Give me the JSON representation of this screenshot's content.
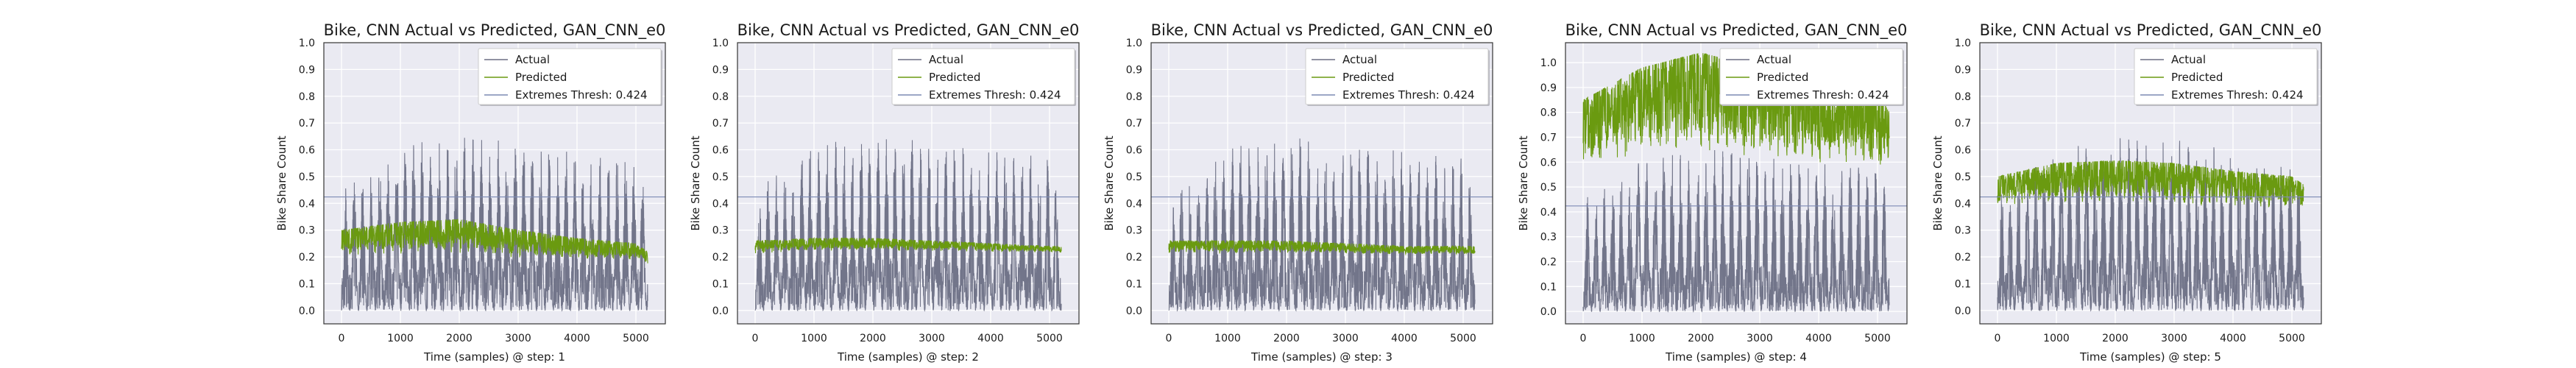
{
  "colors": {
    "plot_bg": "#eaeaf2",
    "grid": "#ffffff",
    "actual": "#6b6f84",
    "predicted": "#6a9a10",
    "thresh": "#7c8ab4",
    "legend_bg": "#ffffff",
    "text": "#1a1a1a"
  },
  "legend": {
    "actual_label": "Actual",
    "predicted_label": "Predicted",
    "thresh_label": "Extremes Thresh: 0.424"
  },
  "chart_data": [
    {
      "type": "line",
      "title": "Bike, CNN Actual vs Predicted, GAN_CNN_e0",
      "xlabel": "Time (samples) @ step: 1",
      "ylabel": "Bike Share Count",
      "xlim": [
        -300,
        5500
      ],
      "ylim": [
        -0.05,
        1.0
      ],
      "xticks": [
        "0",
        "1000",
        "2000",
        "3000",
        "4000",
        "5000"
      ],
      "yticks": [
        "0.0",
        "0.1",
        "0.2",
        "0.3",
        "0.4",
        "0.5",
        "0.6",
        "0.7",
        "0.8",
        "0.9",
        "1.0"
      ],
      "threshold": 0.424,
      "legend_placement": "top-right",
      "grid": true,
      "series": [
        {
          "name": "Actual",
          "envelope_x": [
            0,
            1000,
            2000,
            3000,
            4000,
            5000,
            5200
          ],
          "envelope_low": [
            0.0,
            0.0,
            0.0,
            0.0,
            0.0,
            0.0,
            0.0
          ],
          "envelope_high": [
            0.45,
            0.62,
            0.66,
            0.64,
            0.6,
            0.58,
            0.45
          ]
        },
        {
          "name": "Predicted",
          "envelope_x": [
            0,
            1000,
            2000,
            3000,
            4000,
            5000,
            5200
          ],
          "envelope_low": [
            0.18,
            0.18,
            0.18,
            0.17,
            0.17,
            0.17,
            0.16
          ],
          "envelope_high": [
            0.3,
            0.33,
            0.34,
            0.3,
            0.27,
            0.25,
            0.22
          ]
        }
      ]
    },
    {
      "type": "line",
      "title": "Bike, CNN Actual vs Predicted, GAN_CNN_e0",
      "xlabel": "Time (samples) @ step: 2",
      "ylabel": "Bike Share Count",
      "xlim": [
        -300,
        5500
      ],
      "ylim": [
        -0.05,
        1.0
      ],
      "xticks": [
        "0",
        "1000",
        "2000",
        "3000",
        "4000",
        "5000"
      ],
      "yticks": [
        "0.0",
        "0.1",
        "0.2",
        "0.3",
        "0.4",
        "0.5",
        "0.6",
        "0.7",
        "0.8",
        "0.9",
        "1.0"
      ],
      "threshold": 0.424,
      "legend_placement": "top-right",
      "grid": true,
      "series": [
        {
          "name": "Actual",
          "envelope_x": [
            0,
            1000,
            2000,
            3000,
            4000,
            5000,
            5200
          ],
          "envelope_low": [
            0.0,
            0.0,
            0.0,
            0.0,
            0.0,
            0.0,
            0.0
          ],
          "envelope_high": [
            0.45,
            0.62,
            0.66,
            0.64,
            0.6,
            0.58,
            0.45
          ]
        },
        {
          "name": "Predicted",
          "envelope_x": [
            0,
            1000,
            2000,
            3000,
            4000,
            5000,
            5200
          ],
          "envelope_low": [
            0.2,
            0.21,
            0.21,
            0.21,
            0.21,
            0.21,
            0.21
          ],
          "envelope_high": [
            0.26,
            0.27,
            0.27,
            0.26,
            0.25,
            0.24,
            0.24
          ]
        }
      ]
    },
    {
      "type": "line",
      "title": "Bike, CNN Actual vs Predicted, GAN_CNN_e0",
      "xlabel": "Time (samples) @ step: 3",
      "ylabel": "Bike Share Count",
      "xlim": [
        -300,
        5500
      ],
      "ylim": [
        -0.05,
        1.0
      ],
      "xticks": [
        "0",
        "1000",
        "2000",
        "3000",
        "4000",
        "5000"
      ],
      "yticks": [
        "0.0",
        "0.1",
        "0.2",
        "0.3",
        "0.4",
        "0.5",
        "0.6",
        "0.7",
        "0.8",
        "0.9",
        "1.0"
      ],
      "threshold": 0.424,
      "legend_placement": "top-right",
      "grid": true,
      "series": [
        {
          "name": "Actual",
          "envelope_x": [
            0,
            1000,
            2000,
            3000,
            4000,
            5000,
            5200
          ],
          "envelope_low": [
            0.0,
            0.0,
            0.0,
            0.0,
            0.0,
            0.0,
            0.0
          ],
          "envelope_high": [
            0.45,
            0.62,
            0.66,
            0.64,
            0.6,
            0.58,
            0.45
          ]
        },
        {
          "name": "Predicted",
          "envelope_x": [
            0,
            1000,
            2000,
            3000,
            4000,
            5000,
            5200
          ],
          "envelope_low": [
            0.2,
            0.2,
            0.2,
            0.2,
            0.2,
            0.2,
            0.2
          ],
          "envelope_high": [
            0.26,
            0.26,
            0.26,
            0.25,
            0.24,
            0.24,
            0.24
          ]
        }
      ]
    },
    {
      "type": "line",
      "title": "Bike, CNN Actual vs Predicted, GAN_CNN_e0",
      "xlabel": "Time (samples) @ step: 4",
      "ylabel": "Bike Share Count",
      "xlim": [
        -300,
        5500
      ],
      "ylim": [
        -0.05,
        1.08
      ],
      "xticks": [
        "0",
        "1000",
        "2000",
        "3000",
        "4000",
        "5000"
      ],
      "yticks": [
        "0.0",
        "0.1",
        "0.2",
        "0.3",
        "0.4",
        "0.5",
        "0.6",
        "0.7",
        "0.8",
        "0.9",
        "1.0"
      ],
      "threshold": 0.424,
      "legend_placement": "top-right",
      "grid": true,
      "series": [
        {
          "name": "Actual",
          "envelope_x": [
            0,
            1000,
            2000,
            3000,
            4000,
            5000,
            5200
          ],
          "envelope_low": [
            0.0,
            0.0,
            0.0,
            0.0,
            0.0,
            0.0,
            0.0
          ],
          "envelope_high": [
            0.45,
            0.62,
            0.66,
            0.64,
            0.6,
            0.58,
            0.45
          ]
        },
        {
          "name": "Predicted",
          "envelope_x": [
            0,
            1000,
            2000,
            3000,
            4000,
            5000,
            5200
          ],
          "envelope_low": [
            0.52,
            0.52,
            0.52,
            0.51,
            0.5,
            0.5,
            0.5
          ],
          "envelope_high": [
            0.85,
            0.98,
            1.04,
            0.98,
            0.92,
            0.88,
            0.8
          ]
        }
      ]
    },
    {
      "type": "line",
      "title": "Bike, CNN Actual vs Predicted, GAN_CNN_e0",
      "xlabel": "Time (samples) @ step: 5",
      "ylabel": "Bike Share Count",
      "xlim": [
        -300,
        5500
      ],
      "ylim": [
        -0.05,
        1.0
      ],
      "xticks": [
        "0",
        "1000",
        "2000",
        "3000",
        "4000",
        "5000"
      ],
      "yticks": [
        "0.0",
        "0.1",
        "0.2",
        "0.3",
        "0.4",
        "0.5",
        "0.6",
        "0.7",
        "0.8",
        "0.9",
        "1.0"
      ],
      "threshold": 0.424,
      "legend_placement": "top-right",
      "grid": true,
      "series": [
        {
          "name": "Actual",
          "envelope_x": [
            0,
            1000,
            2000,
            3000,
            4000,
            5000,
            5200
          ],
          "envelope_low": [
            0.0,
            0.0,
            0.0,
            0.0,
            0.0,
            0.0,
            0.0
          ],
          "envelope_high": [
            0.45,
            0.62,
            0.66,
            0.64,
            0.6,
            0.58,
            0.45
          ]
        },
        {
          "name": "Predicted",
          "envelope_x": [
            0,
            1000,
            2000,
            3000,
            4000,
            5000,
            5200
          ],
          "envelope_low": [
            0.36,
            0.36,
            0.36,
            0.35,
            0.35,
            0.35,
            0.35
          ],
          "envelope_high": [
            0.5,
            0.55,
            0.56,
            0.55,
            0.52,
            0.5,
            0.47
          ]
        }
      ]
    }
  ]
}
